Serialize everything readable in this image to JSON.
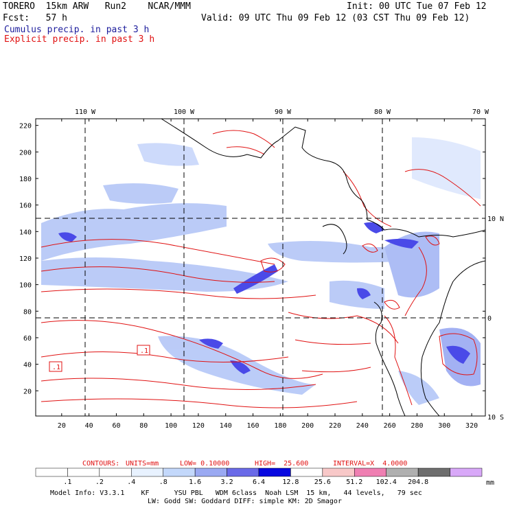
{
  "header": {
    "model": "TORERO  15km ARW   Run2    NCAR/MMM",
    "init": "Init: 00 UTC Tue 07 Feb 12",
    "fcst": "Fcst:   57 h",
    "valid": "Valid: 09 UTC Thu 09 Feb 12 (03 CST Thu 09 Feb 12)",
    "line1": "Cumulus precip. in past 3 h",
    "line2": "Explicit precip. in past 3 h"
  },
  "map": {
    "top_labels": [
      "110 W",
      "100 W",
      "90 W",
      "80 W",
      "70 W"
    ],
    "right_labels": [
      "10 N",
      "0",
      "10 S"
    ],
    "x_ticks": [
      "20",
      "40",
      "60",
      "80",
      "100",
      "120",
      "140",
      "160",
      "180",
      "200",
      "220",
      "240",
      "260",
      "280",
      "300",
      "320"
    ],
    "y_ticks": [
      "220",
      "200",
      "180",
      "160",
      "140",
      "120",
      "100",
      "80",
      "60",
      "40",
      "20"
    ],
    "contour_labels": [
      ".1",
      ".1"
    ]
  },
  "footer": {
    "contours": {
      "prefix": "CONTOURS:",
      "units": "UNITS=mm",
      "low": "LOW= 0.10000",
      "high": "HIGH=  25.600",
      "interval": "INTERVAL=X  4.0000"
    },
    "colorbar_labels": [
      ".1",
      ".2",
      ".4",
      ".8",
      "1.6",
      "3.2",
      "6.4",
      "12.8",
      "25.6",
      "51.2",
      "102.4",
      "204.8"
    ],
    "colorbar_unit": "mm",
    "colorbar_colors": [
      "#ffffff",
      "#ffffff",
      "#ffffff",
      "#e8f2ff",
      "#c3d8fb",
      "#9aa9f2",
      "#6a6ae8",
      "#0808e0",
      "#ffffff",
      "#f8c8c8",
      "#ef7fb2",
      "#b0b0b0",
      "#6e6e6e",
      "#d8a8f8"
    ],
    "info1": "Model Info: V3.3.1    KF      YSU PBL   WDM 6class  Noah LSM  15 km,   44 levels,   79 sec",
    "info2": "LW: Godd SW: Goddard DIFF: simple KM: 2D Smagor"
  },
  "chart_data": {
    "type": "heatmap",
    "title": "Cumulus precip. in past 3 h / Explicit precip. in past 3 h",
    "units": "mm",
    "x_grid_range": [
      1,
      330
    ],
    "y_grid_range": [
      1,
      225
    ],
    "contour_low": 0.1,
    "contour_high": 25.6,
    "contour_interval_factor": 4.0,
    "shade_levels": [
      0.1,
      0.2,
      0.4,
      0.8,
      1.6,
      3.2,
      6.4,
      12.8,
      25.6,
      51.2,
      102.4,
      204.8
    ],
    "longitude_labels": [
      "110 W",
      "100 W",
      "90 W",
      "80 W",
      "70 W"
    ],
    "latitude_labels": [
      "10 N",
      "0",
      "10 S"
    ]
  }
}
